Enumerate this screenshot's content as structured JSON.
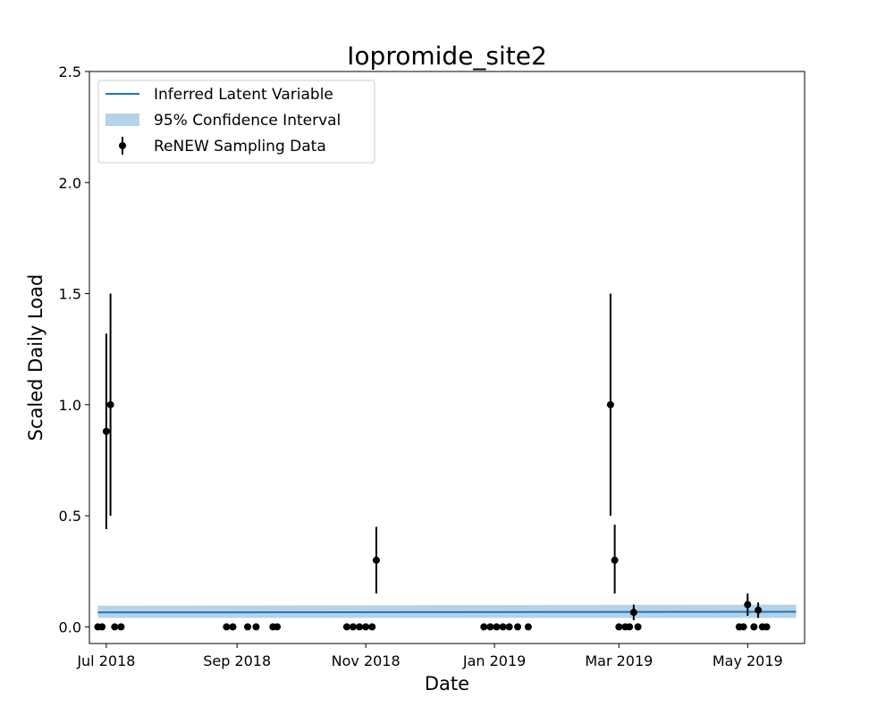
{
  "chart_data": {
    "type": "scatter",
    "title": "Iopromide_site2",
    "xlabel": "Date",
    "ylabel": "Scaled Daily Load",
    "xlim": [
      "2018-06-23",
      "2019-05-28"
    ],
    "ylim": [
      -0.075,
      2.5
    ],
    "yticks": [
      0.0,
      0.5,
      1.0,
      1.5,
      2.0,
      2.5
    ],
    "ytick_labels": [
      "0.0",
      "0.5",
      "1.0",
      "1.5",
      "2.0",
      "2.5"
    ],
    "xticks": [
      "2018-07-01",
      "2018-09-01",
      "2018-11-01",
      "2019-01-01",
      "2019-03-01",
      "2019-05-01"
    ],
    "xtick_labels": [
      "Jul 2018",
      "Sep 2018",
      "Nov 2018",
      "Jan 2019",
      "Mar 2019",
      "May 2019"
    ],
    "grid": false,
    "legend": {
      "placement": "top-left",
      "entries": [
        "Inferred Latent Variable",
        "95% Confidence Interval",
        "ReNEW Sampling Data"
      ]
    },
    "colors": {
      "latent_line": "#1f77b4",
      "confidence_band": "#b5d2e8",
      "sampling_points": "#000000"
    },
    "latent_variable": {
      "name": "Inferred Latent Variable",
      "x": [
        "2018-06-27",
        "2019-05-24"
      ],
      "y": [
        0.065,
        0.068
      ]
    },
    "confidence_interval": {
      "name": "95% Confidence Interval",
      "x": [
        "2018-06-27",
        "2019-05-24"
      ],
      "lower": [
        0.04,
        0.04
      ],
      "upper": [
        0.095,
        0.1
      ]
    },
    "sampling_data": {
      "name": "ReNEW Sampling Data",
      "points": [
        {
          "x": "2018-06-27",
          "y": 0.0
        },
        {
          "x": "2018-06-29",
          "y": 0.0
        },
        {
          "x": "2018-07-01",
          "y": 0.88,
          "err_low": 0.44,
          "err_high": 1.32
        },
        {
          "x": "2018-07-03",
          "y": 1.0,
          "err_low": 0.5,
          "err_high": 1.5
        },
        {
          "x": "2018-07-05",
          "y": 0.0
        },
        {
          "x": "2018-07-08",
          "y": 0.0
        },
        {
          "x": "2018-08-27",
          "y": 0.0
        },
        {
          "x": "2018-08-30",
          "y": 0.0
        },
        {
          "x": "2018-09-06",
          "y": 0.0
        },
        {
          "x": "2018-09-10",
          "y": 0.0
        },
        {
          "x": "2018-09-18",
          "y": 0.0
        },
        {
          "x": "2018-09-20",
          "y": 0.0
        },
        {
          "x": "2018-10-23",
          "y": 0.0
        },
        {
          "x": "2018-10-26",
          "y": 0.0
        },
        {
          "x": "2018-10-29",
          "y": 0.0
        },
        {
          "x": "2018-11-01",
          "y": 0.0
        },
        {
          "x": "2018-11-04",
          "y": 0.0
        },
        {
          "x": "2018-11-06",
          "y": 0.3,
          "err_low": 0.15,
          "err_high": 0.45
        },
        {
          "x": "2018-12-27",
          "y": 0.0
        },
        {
          "x": "2018-12-30",
          "y": 0.0
        },
        {
          "x": "2019-01-02",
          "y": 0.0
        },
        {
          "x": "2019-01-05",
          "y": 0.0
        },
        {
          "x": "2019-01-08",
          "y": 0.0
        },
        {
          "x": "2019-01-12",
          "y": 0.0
        },
        {
          "x": "2019-01-17",
          "y": 0.0
        },
        {
          "x": "2019-02-25",
          "y": 1.0,
          "err_low": 0.5,
          "err_high": 1.5
        },
        {
          "x": "2019-02-27",
          "y": 0.3,
          "err_low": 0.15,
          "err_high": 0.46
        },
        {
          "x": "2019-03-01",
          "y": 0.0
        },
        {
          "x": "2019-03-04",
          "y": 0.0
        },
        {
          "x": "2019-03-06",
          "y": 0.0
        },
        {
          "x": "2019-03-08",
          "y": 0.065,
          "err_low": 0.03,
          "err_high": 0.1
        },
        {
          "x": "2019-03-10",
          "y": 0.0
        },
        {
          "x": "2019-04-27",
          "y": 0.0
        },
        {
          "x": "2019-04-29",
          "y": 0.0
        },
        {
          "x": "2019-05-01",
          "y": 0.1,
          "err_low": 0.05,
          "err_high": 0.15
        },
        {
          "x": "2019-05-04",
          "y": 0.0
        },
        {
          "x": "2019-05-06",
          "y": 0.075,
          "err_low": 0.04,
          "err_high": 0.11
        },
        {
          "x": "2019-05-08",
          "y": 0.0
        },
        {
          "x": "2019-05-10",
          "y": 0.0
        }
      ]
    }
  }
}
